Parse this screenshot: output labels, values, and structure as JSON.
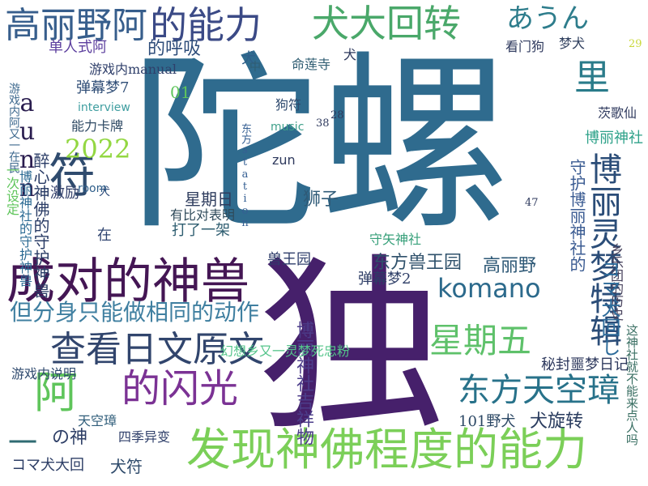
{
  "words": {
    "w01": "陀螺",
    "w02": "独",
    "w03": "成对的神兽",
    "w04": "发现神佛程度的能力",
    "w05": "高丽野阿",
    "w06": "的能力",
    "w07": "犬大回转",
    "w08": "あうん",
    "w09": "查看日文原文",
    "w10": "阿",
    "w11": "的闪光",
    "w12": "星期五",
    "w13": "东方天空璋",
    "w14": "komano",
    "w15": "博丽灵梦特辑",
    "w16": "符",
    "w17": "2022",
    "w18": "aunn",
    "w19": "但分身只能做相同的动作",
    "w20": "守护博丽神社的",
    "w21": "博丽神社的守护神兽",
    "w22": "醉心神佛的守护神兽",
    "w23": "里",
    "w24": "犬",
    "w25": "单人式阿",
    "w26": "的呼吸",
    "w27": "弹幕梦7",
    "w28": "interview",
    "w29": "游戏内manual",
    "w30": "能力卡牌",
    "w31": "激励",
    "w32": "犬",
    "w33": "room",
    "w34": "星期日",
    "w35": "有比对表明",
    "w36": "打了一架",
    "w37": "在",
    "w38": "狮子",
    "w39": "兽王园",
    "w40": "东方兽王园",
    "w41": "高丽野",
    "w42": "弹幕梦2",
    "w43": "コマ犬回し",
    "w44": "博丽神社吉祥物",
    "w45": "幻想乡又一灵梦死忠粉",
    "w46": "秘封噩梦日记",
    "w47": "101野犬",
    "w48": "犬旋转",
    "w49": "游戏内说明",
    "w50": "天空璋",
    "w51": "一",
    "w52": "の神",
    "w53": "四季异变",
    "w54": "コマ犬大回",
    "w55": "犬符",
    "w56": "这神社就不能来点人吗",
    "w57": "乡乐团的历史",
    "w58": "茨歌仙",
    "w59": "博丽神社",
    "w60": "梦犬",
    "w61": "看门狗",
    "w62": "命莲寺",
    "w63": "狗符",
    "w64": "music",
    "w65": "zun",
    "w66": "东方station",
    "w67": "守矢神社",
    "w68": "01",
    "w69": "38",
    "w70": "28",
    "w71": "47",
    "w72": "29",
    "w73": "游戏内阿又一在民",
    "w74": "中",
    "w75": "犬",
    "w76": "一次设定"
  }
}
